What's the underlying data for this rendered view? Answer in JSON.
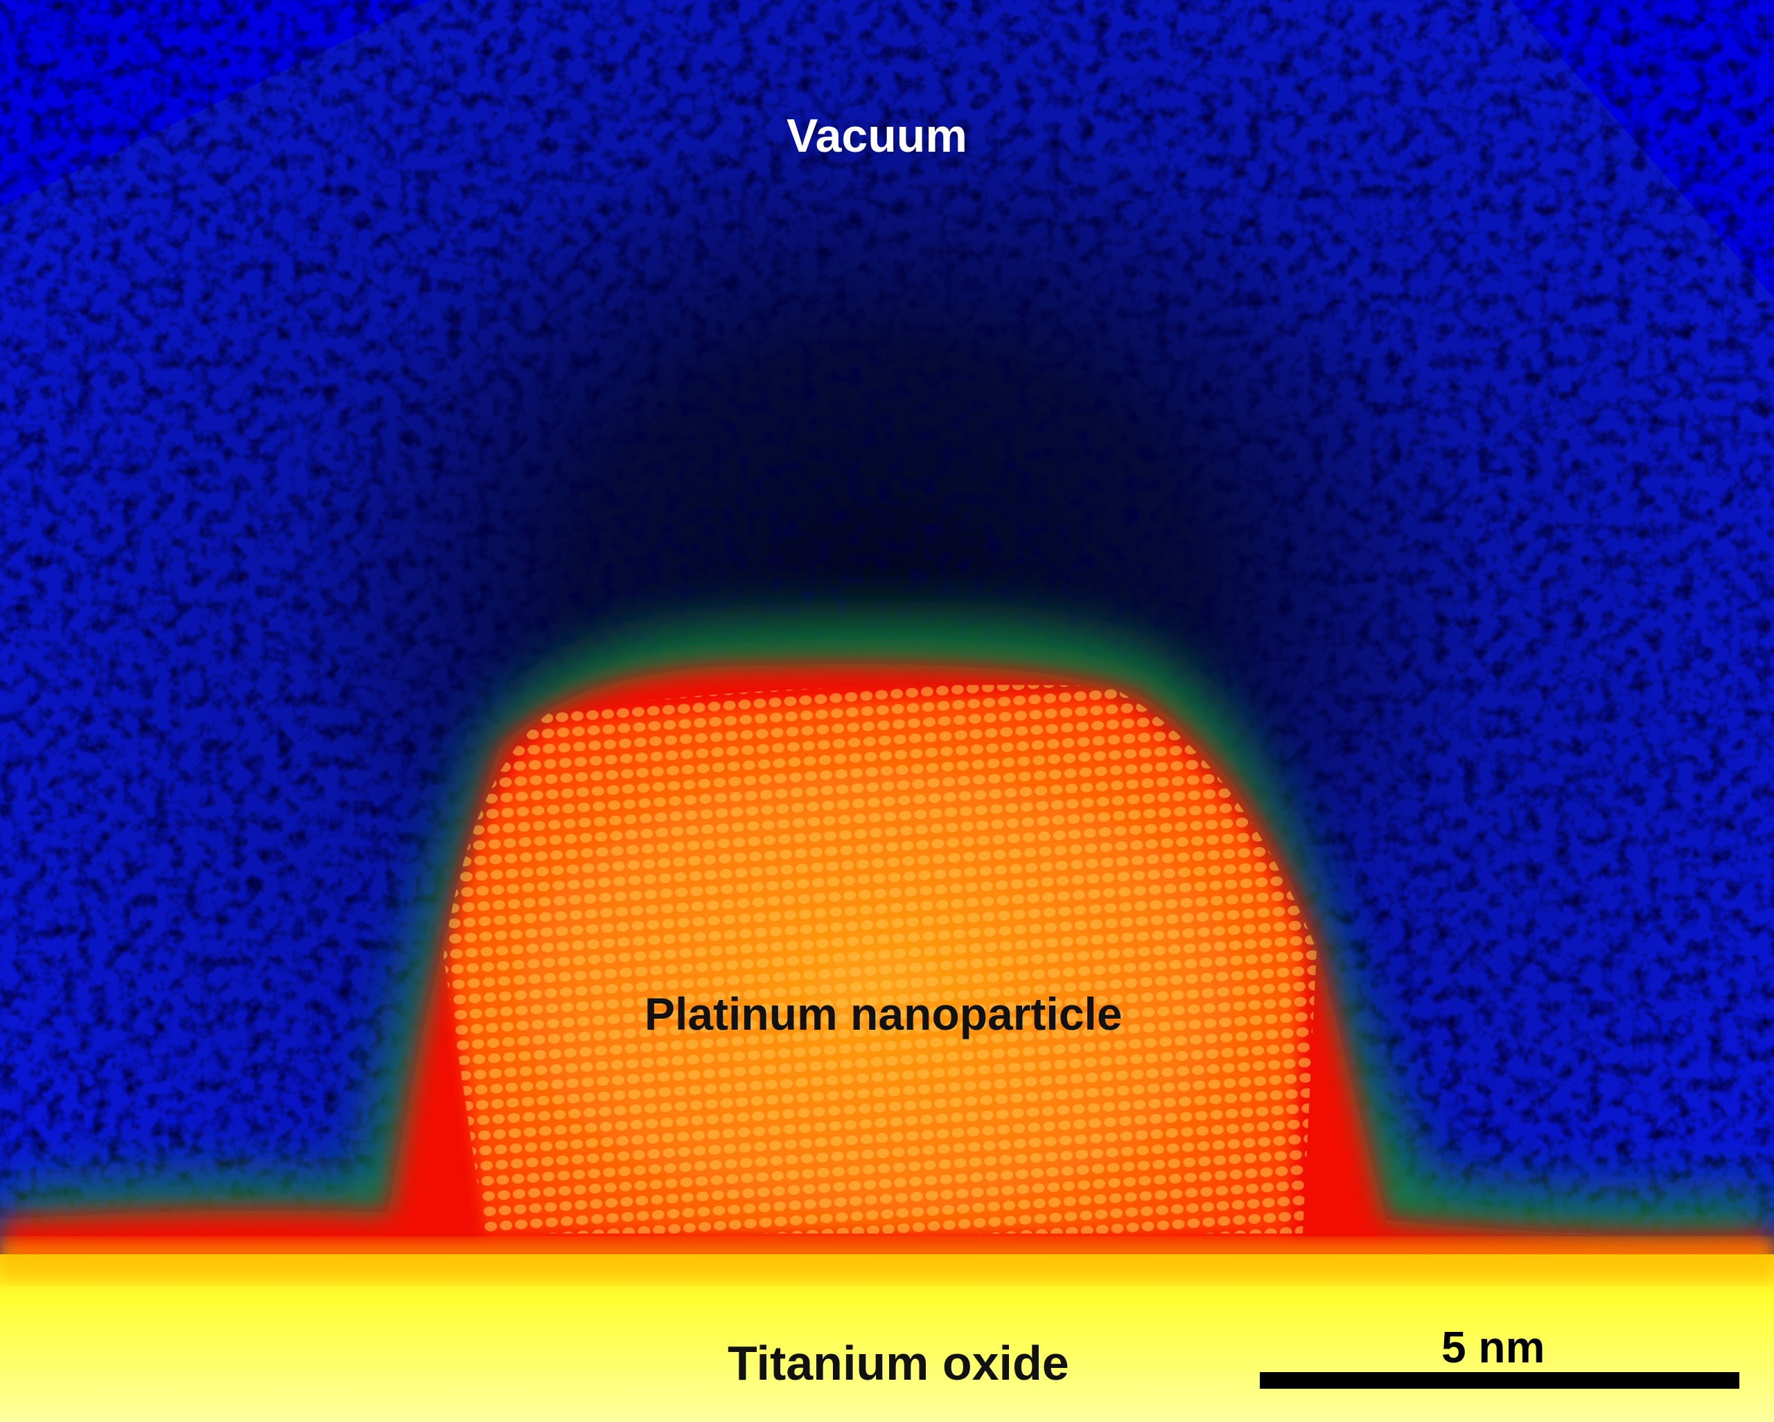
{
  "labels": {
    "vacuum": "Vacuum",
    "particle": "Platinum nanoparticle",
    "substrate": "Titanium oxide"
  },
  "scale_bar": {
    "label": "5 nm"
  },
  "colors": {
    "vacuum_outer": "#0a14e0",
    "vacuum_inner": "#040a30",
    "particle_edge_green": "#1c8a2a",
    "particle_red": "#f00808",
    "particle_core": "#ff8a10",
    "substrate": "#ffff70"
  }
}
